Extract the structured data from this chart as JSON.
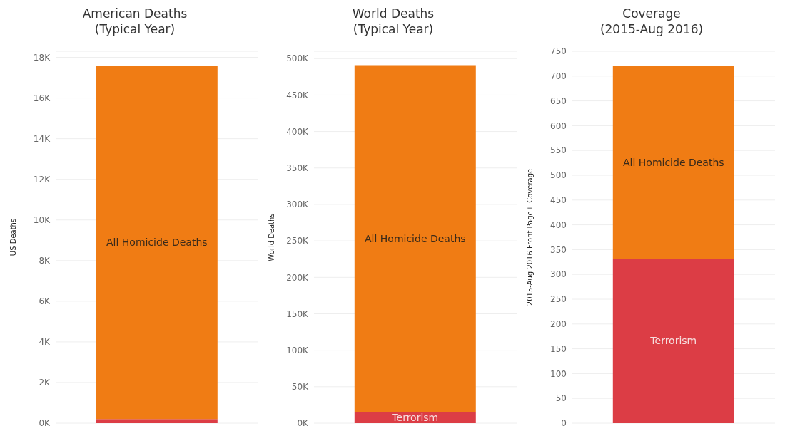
{
  "chart_data": [
    {
      "type": "bar",
      "title": "American Deaths\n(Typical Year)",
      "ylabel": "US Deaths",
      "categories": [
        null
      ],
      "stacked": true,
      "grid": "y",
      "series": [
        {
          "color": "#dc3d45",
          "values": [
            200
          ]
        },
        {
          "name": "All Homicide Deaths",
          "color": "#f07c14",
          "values": [
            17400
          ]
        }
      ],
      "ylim": [
        0,
        18300
      ],
      "yticks": [
        {
          "value": 0,
          "label": "0K"
        },
        {
          "value": 2000,
          "label": "2K"
        },
        {
          "value": 4000,
          "label": "4K"
        },
        {
          "value": 6000,
          "label": "6K"
        },
        {
          "value": 8000,
          "label": "8K"
        },
        {
          "value": 10000,
          "label": "10K"
        },
        {
          "value": 12000,
          "label": "12K"
        },
        {
          "value": 14000,
          "label": "14K"
        },
        {
          "value": 16000,
          "label": "16K"
        },
        {
          "value": 18000,
          "label": "18K"
        }
      ]
    },
    {
      "type": "bar",
      "title": "World Deaths\n(Typical Year)",
      "ylabel": "World Deaths",
      "categories": [
        null
      ],
      "stacked": true,
      "grid": "y",
      "series": [
        {
          "name": "Terrorism",
          "color": "#dc3d45",
          "values": [
            15000
          ]
        },
        {
          "name": "All Homicide Deaths",
          "color": "#f07c14",
          "values": [
            476000
          ]
        }
      ],
      "ylim": [
        0,
        510000
      ],
      "yticks": [
        {
          "value": 0,
          "label": "0K"
        },
        {
          "value": 50000,
          "label": "50K"
        },
        {
          "value": 100000,
          "label": "100K"
        },
        {
          "value": 150000,
          "label": "150K"
        },
        {
          "value": 200000,
          "label": "200K"
        },
        {
          "value": 250000,
          "label": "250K"
        },
        {
          "value": 300000,
          "label": "300K"
        },
        {
          "value": 350000,
          "label": "350K"
        },
        {
          "value": 400000,
          "label": "400K"
        },
        {
          "value": 450000,
          "label": "450K"
        },
        {
          "value": 500000,
          "label": "500K"
        }
      ]
    },
    {
      "type": "bar",
      "title": "Coverage\n(2015-Aug 2016)",
      "ylabel": "2015-Aug 2016 Front Page+ Coverage",
      "categories": [
        null
      ],
      "stacked": true,
      "grid": "y",
      "series": [
        {
          "name": "Terrorism",
          "color": "#dc3d45",
          "values": [
            332
          ]
        },
        {
          "name": "All Homicide Deaths",
          "color": "#f07c14",
          "values": [
            388
          ]
        }
      ],
      "ylim": [
        0,
        750
      ],
      "yticks": [
        0,
        50,
        100,
        150,
        200,
        250,
        300,
        350,
        400,
        450,
        500,
        550,
        600,
        650,
        700,
        750
      ]
    }
  ]
}
